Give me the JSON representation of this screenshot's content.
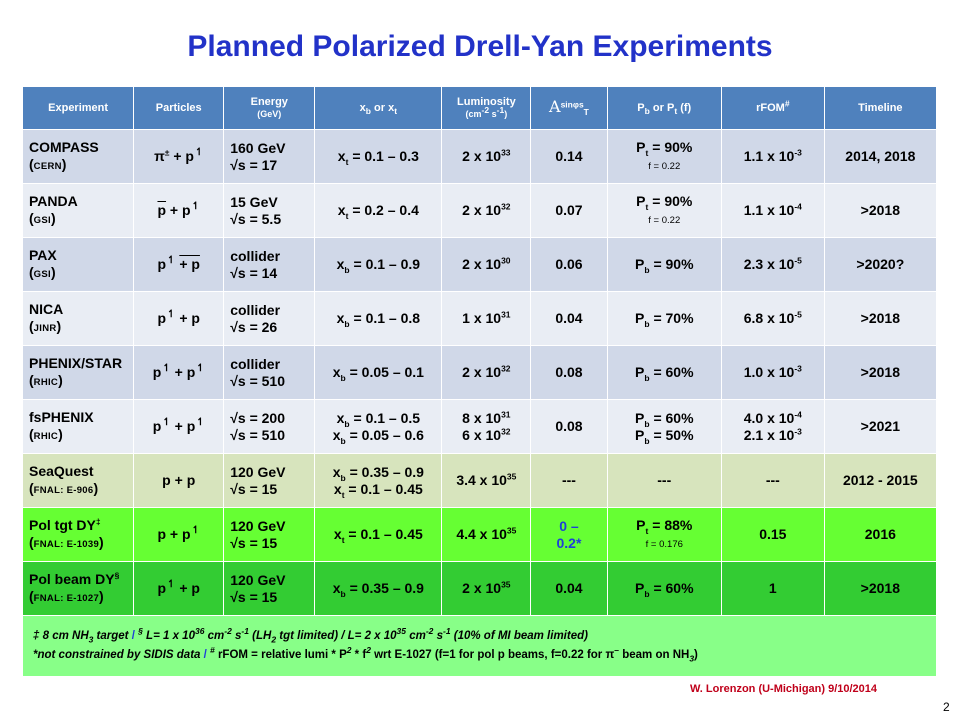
{
  "title": "Planned Polarized Drell-Yan Experiments",
  "headers": {
    "experiment": "Experiment",
    "particles": "Particles",
    "energy": "Energy",
    "energy_unit": "(GeV)",
    "x": "x",
    "x_sub_b": "b",
    "x_or": "or",
    "x_sub_t": "t",
    "luminosity": "Luminosity",
    "lumi_unit": "(cm",
    "lumi_exp1": "-2",
    "lumi_s": "s",
    "lumi_exp2": "-1",
    "asym_a": "A",
    "asym_sub": "T",
    "asym_sup": "sinφs",
    "pol": "P",
    "pol_sub_b": "b",
    "pol_or": "or",
    "pol_sub_t": "t",
    "pol_f": "(f)",
    "rfom": "rFOM",
    "rfom_mark": "#",
    "timeline": "Timeline"
  },
  "rows": [
    {
      "name": "COMPASS",
      "lab": "CERN",
      "particles_a": "π",
      "particles_sup": "±",
      "particles_b": "+ p",
      "energy1": "160  GeV",
      "energy2": "√s = 17",
      "x": "x",
      "x_sub": "t",
      "x_range": "= 0.1 – 0.3",
      "lumi": "2 x 10",
      "lumi_exp": "33",
      "asym": "0.14",
      "pol": "P",
      "pol_sub": "t",
      "pol_val": "= 90%",
      "pol_f": "f = 0.22",
      "rfom": "1.1 x 10",
      "rfom_exp": "-3",
      "timeline": "2014, 2018"
    },
    {
      "name": "PANDA",
      "lab": "GSI",
      "particles_a": "p",
      "particles_b": "+ p",
      "energy1": "15 GeV",
      "energy2": "√s = 5.5",
      "x": "x",
      "x_sub": "t",
      "x_range": "= 0.2 – 0.4",
      "lumi": "2 x 10",
      "lumi_exp": "32",
      "asym": "0.07",
      "pol": "P",
      "pol_sub": "t",
      "pol_val": "=  90%",
      "pol_f": "f = 0.22",
      "rfom": "1.1 x 10",
      "rfom_exp": "-4",
      "timeline": ">2018"
    },
    {
      "name": "PAX",
      "lab": "GSI",
      "particles_a": "p",
      "particles_b": "+ p",
      "energy1": "collider",
      "energy2": "√s = 14",
      "x": "x",
      "x_sub": "b",
      "x_range": "= 0.1 – 0.9",
      "lumi": "2 x 10",
      "lumi_exp": "30",
      "asym": "0.06",
      "pol": "P",
      "pol_sub": "b",
      "pol_val": "=  90%",
      "rfom": "2.3 x 10",
      "rfom_exp": "-5",
      "timeline": ">2020?"
    },
    {
      "name": "NICA",
      "lab": "JINR",
      "particles_a": "p",
      "particles_b": "+ p",
      "energy1": "collider",
      "energy2": "√s = 26",
      "x": "x",
      "x_sub": "b",
      "x_range": "= 0.1 – 0.8",
      "lumi": "1 x 10",
      "lumi_exp": "31",
      "asym": "0.04",
      "pol": "P",
      "pol_sub": "b",
      "pol_val": "=  70%",
      "rfom": "6.8 x 10",
      "rfom_exp": "-5",
      "timeline": ">2018"
    },
    {
      "name": "PHENIX/STAR",
      "lab": "RHIC",
      "particles_a": "p",
      "particles_b": "+ p",
      "energy1": "collider",
      "energy2": "√s = 510",
      "x": "x",
      "x_sub": "b",
      "x_range": "= 0.05 – 0.1",
      "lumi": "2 x 10",
      "lumi_exp": "32",
      "asym": "0.08",
      "pol": "P",
      "pol_sub": "b",
      "pol_val": "= 60%",
      "rfom": "1.0 x 10",
      "rfom_exp": "-3",
      "timeline": ">2018"
    },
    {
      "name": "fsPHENIX",
      "lab": "RHIC",
      "particles_a": "p",
      "particles_b": "+ p",
      "energy1": "√s = 200",
      "energy2": "√s = 510",
      "x": "x",
      "x_sub": "b",
      "x_range": "= 0.1 – 0.5",
      "x2": "x",
      "x2_sub": "b",
      "x2_range": "= 0.05 – 0.6",
      "lumi": "8 x 10",
      "lumi_exp": "31",
      "lumi2": "6 x 10",
      "lumi2_exp": "32",
      "asym": "0.08",
      "pol": "P",
      "pol_sub": "b",
      "pol_val": "= 60%",
      "pol2": "P",
      "pol2_sub": "b",
      "pol2_val": "= 50%",
      "rfom": "4.0 x 10",
      "rfom_exp": "-4",
      "rfom2": "2.1 x 10",
      "rfom2_exp": "-3",
      "timeline": ">2021"
    },
    {
      "name": "SeaQuest",
      "lab": "FNAL: E-906",
      "particles_a": "p",
      "particles_b": "+ p",
      "energy1": "120 GeV",
      "energy2": "√s = 15",
      "x": "x",
      "x_sub": "b",
      "x_range": "= 0.35 – 0.9",
      "x2": "x",
      "x2_sub": "t",
      "x2_range": "= 0.1 – 0.45",
      "lumi": "3.4 x 10",
      "lumi_exp": "35",
      "asym": "---",
      "pol_dash": "---",
      "rfom_dash": "---",
      "timeline": "2012 - 2015"
    },
    {
      "name": "Pol tgt DY",
      "name_mark": "‡",
      "lab": "FNAL: E-1039",
      "particles_a": "p",
      "particles_b": "+ p",
      "energy1": "120 GeV",
      "energy2": "√s = 15",
      "x": "x",
      "x_sub": "t",
      "x_range": "= 0.1 – 0.45",
      "lumi": "4.4 x 10",
      "lumi_exp": "35",
      "asym1": "0 –",
      "asym2": "0.2*",
      "pol": "P",
      "pol_sub": "t",
      "pol_val": "= 88%",
      "pol_f": "f = 0.176",
      "rfom_plain": "0.15",
      "timeline": "2016"
    },
    {
      "name": "Pol beam DY",
      "name_mark": "§",
      "lab": "FNAL: E-1027",
      "particles_a": "p",
      "particles_b": "+ p",
      "energy1": "120 GeV",
      "energy2": "√s = 15",
      "x": "x",
      "x_sub": "b",
      "x_range": "= 0.35 – 0.9",
      "lumi": "2 x 10",
      "lumi_exp": "35",
      "asym": "0.04",
      "pol": "P",
      "pol_sub": "b",
      "pol_val": "= 60%",
      "rfom_plain": "1",
      "timeline": ">2018"
    }
  ],
  "footnotes": {
    "line1_a": "‡",
    "line1_b": " 8 cm NH",
    "line1_b_sub": "3",
    "line1_c": " target",
    "slash1": "/",
    "line1_d": "§",
    "line1_e": " L= 1 x 10",
    "line1_e_sup": "36",
    "line1_f": " cm",
    "line1_f_sup": "-2",
    "line1_g": " s",
    "line1_g_sup": "-1",
    "line1_h": " (LH",
    "line1_h_sub": "2",
    "line1_i": " tgt limited)   /  L= 2 x 10",
    "line1_i_sup": "35",
    "line1_j": " cm",
    "line1_j_sup": "-2",
    "line1_k": " s",
    "line1_k_sup": "-1",
    "line1_l": " (10% of MI beam limited)",
    "line2_a": "*not constrained by SIDIS data",
    "slash2": "/",
    "line2_b": "#",
    "line2_c": " rFOM = relative lumi * P",
    "line2_c_sup": "2",
    "line2_d": " * f",
    "line2_d_sup": "2",
    "line2_e": "  wrt E-1027 (f=1 for pol p beams, f=0.22 for π",
    "line2_e_sup": "–",
    "line2_f": " beam on NH",
    "line2_f_sub": "3",
    "line2_g": ")"
  },
  "footer": "W. Lorenzon (U-Michigan)  9/10/2014",
  "page_number": "2",
  "colors": {
    "title": "#2232c8",
    "header": "#4f81bd",
    "row_dark": "#d0d8e8",
    "row_light": "#e9edf4",
    "seaquest": "#d7e4bd",
    "pol_tgt": "#66ff33",
    "pol_beam": "#33cc33",
    "footnote_bg": "#88ff88",
    "footer": "#c0001a"
  },
  "icons": {
    "polarized": "up-harpoon-arrow"
  }
}
